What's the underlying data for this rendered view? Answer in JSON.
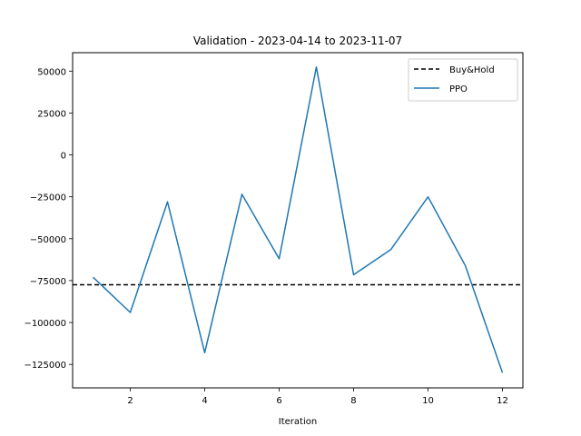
{
  "chart_data": {
    "type": "line",
    "title": "Validation - 2023-04-14 to 2023-11-07",
    "xlabel": "Iteration",
    "ylabel": "",
    "xlim": [
      0.45,
      12.55
    ],
    "ylim": [
      -139000,
      61000
    ],
    "xticks": [
      2,
      4,
      6,
      8,
      10,
      12
    ],
    "yticks": [
      50000,
      25000,
      0,
      -25000,
      -50000,
      -75000,
      -100000,
      -125000
    ],
    "grid": false,
    "legend_position": "top-right",
    "series": [
      {
        "name": "Buy&Hold",
        "kind": "hline",
        "value": -77500,
        "color": "#000000",
        "style": "dashed"
      },
      {
        "name": "PPO",
        "kind": "line",
        "color": "#1f77b4",
        "x": [
          1,
          2,
          3,
          4,
          5,
          6,
          7,
          8,
          9,
          10,
          11,
          12
        ],
        "y": [
          -73000,
          -94000,
          -28000,
          -118000,
          -23500,
          -62000,
          52500,
          -71500,
          -56500,
          -25000,
          -66000,
          -130000
        ]
      }
    ]
  }
}
